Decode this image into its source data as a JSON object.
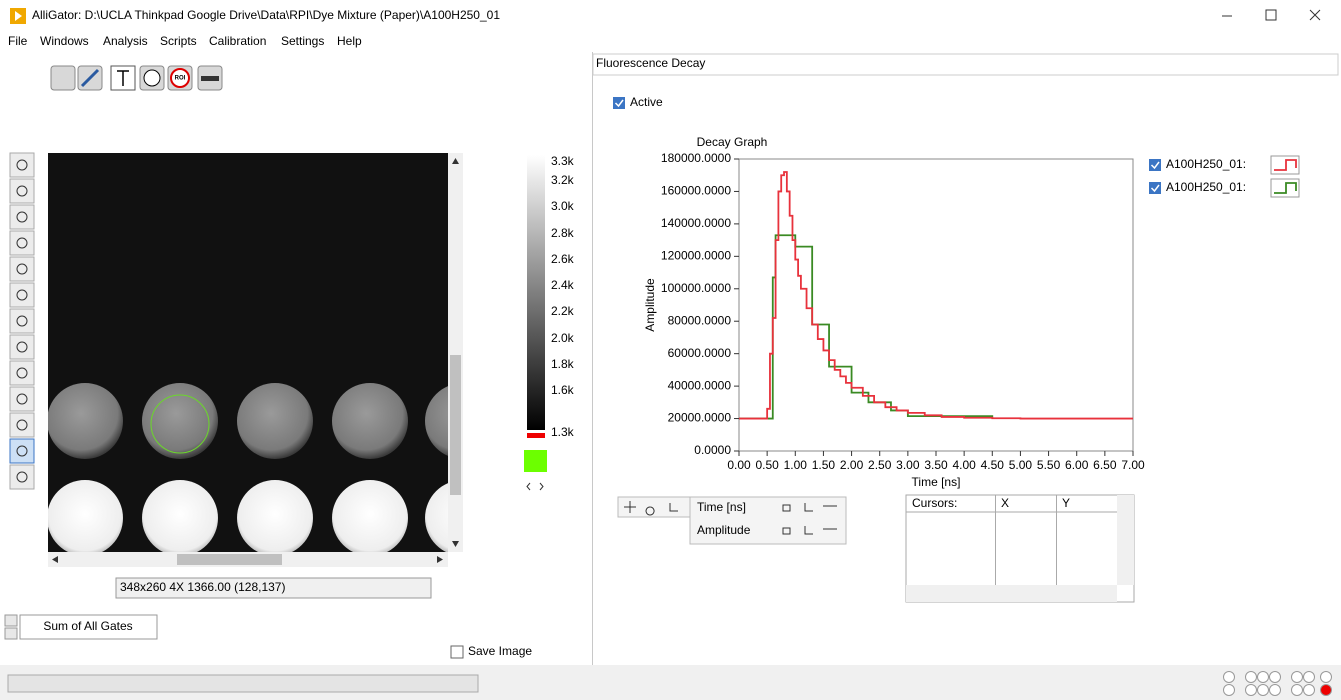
{
  "window": {
    "title": "AlliGator: D:\\UCLA Thinkpad Google Drive\\Data\\RPI\\Dye Mixture (Paper)\\A100H250_01"
  },
  "menu": [
    "File",
    "Windows",
    "Analysis",
    "Scripts",
    "Calibration",
    "Settings",
    "Help"
  ],
  "toolbar": {
    "roi": "ROI"
  },
  "image_panel": {
    "info": "348x260 4X 1366.00    (128,137)",
    "colorbar_labels": [
      "3.3k",
      "3.2k",
      "3.0k",
      "2.8k",
      "2.6k",
      "2.4k",
      "2.2k",
      "2.0k",
      "1.8k",
      "1.6k",
      "1.3k"
    ],
    "gate_button": "Sum of All Gates",
    "save_image": "Save Image"
  },
  "decay_panel": {
    "tab": "Fluorescence Decay",
    "active": "Active",
    "cursor_axes": [
      "Time [ns]",
      "Amplitude"
    ],
    "cursor_table": [
      "Cursors:",
      "X",
      "Y"
    ]
  },
  "chart_data": {
    "type": "line",
    "step": true,
    "title": "Decay Graph",
    "x_label": "Time [ns]",
    "y_label": "Amplitude",
    "xlim": [
      0,
      7
    ],
    "ylim": [
      0,
      180000
    ],
    "xticks": [
      {
        "value": 0,
        "label": "0.00"
      },
      {
        "value": 0.5,
        "label": "0.50"
      },
      {
        "value": 1,
        "label": "1.00"
      },
      {
        "value": 1.5,
        "label": "1.50"
      },
      {
        "value": 2,
        "label": "2.00"
      },
      {
        "value": 2.5,
        "label": "2.50"
      },
      {
        "value": 3,
        "label": "3.00"
      },
      {
        "value": 3.5,
        "label": "3.50"
      },
      {
        "value": 4,
        "label": "4.00"
      },
      {
        "value": 4.5,
        "label": "4.50"
      },
      {
        "value": 5,
        "label": "5.00"
      },
      {
        "value": 5.5,
        "label": "5.50"
      },
      {
        "value": 6,
        "label": "6.00"
      },
      {
        "value": 6.5,
        "label": "6.50"
      },
      {
        "value": 7,
        "label": "7.00"
      }
    ],
    "yticks": [
      {
        "value": 0,
        "label": "0.0000"
      },
      {
        "value": 20000,
        "label": "20000.0000"
      },
      {
        "value": 40000,
        "label": "40000.0000"
      },
      {
        "value": 60000,
        "label": "60000.0000"
      },
      {
        "value": 80000,
        "label": "80000.0000"
      },
      {
        "value": 100000,
        "label": "100000.0000"
      },
      {
        "value": 120000,
        "label": "120000.0000"
      },
      {
        "value": 140000,
        "label": "140000.0000"
      },
      {
        "value": 160000,
        "label": "160000.0000"
      },
      {
        "value": 180000,
        "label": "180000.0000"
      }
    ],
    "series": [
      {
        "name": "A100H250_01:",
        "color": "#e8323c",
        "x": [
          0,
          0.45,
          0.5,
          0.55,
          0.6,
          0.65,
          0.7,
          0.75,
          0.8,
          0.85,
          0.9,
          0.95,
          1.0,
          1.05,
          1.1,
          1.2,
          1.3,
          1.4,
          1.5,
          1.6,
          1.7,
          1.8,
          1.9,
          2.0,
          2.2,
          2.4,
          2.6,
          2.8,
          3.0,
          3.3,
          3.6,
          4.0,
          4.5,
          5.0,
          7.0
        ],
        "values": [
          20000,
          20000,
          26000,
          60000,
          82000,
          130000,
          160000,
          170000,
          172000,
          160000,
          145000,
          130000,
          118000,
          108000,
          100000,
          88000,
          78000,
          69000,
          62000,
          56000,
          50000,
          46000,
          42000,
          39000,
          34000,
          30000,
          27000,
          25000,
          23500,
          22000,
          21000,
          20500,
          20200,
          20000,
          20000
        ]
      },
      {
        "name": "A100H250_01:",
        "color": "#3a8a23",
        "x": [
          0,
          0.6,
          0.65,
          1.0,
          1.3,
          1.6,
          2.0,
          2.3,
          2.7,
          3.0,
          4.5
        ],
        "values": [
          20000,
          107000,
          133000,
          126000,
          78000,
          52000,
          36000,
          30000,
          25000,
          21500,
          20000
        ]
      }
    ]
  }
}
